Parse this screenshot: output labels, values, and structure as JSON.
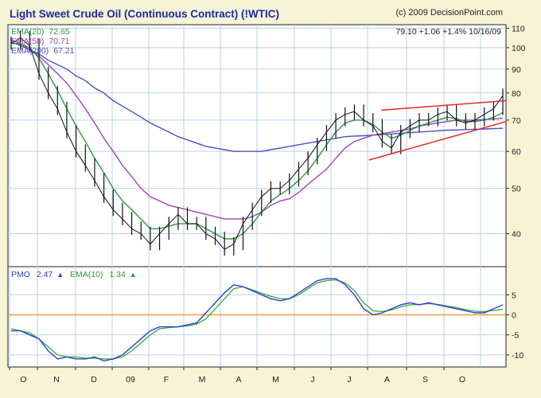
{
  "header": {
    "title": "Light Sweet Crude Oil (Continuous Contract) (!WTIC)",
    "copyright": "(c) 2009 DecisionPoint.com",
    "quote": "79.10  +1.06  +1.4%  10/16/09"
  },
  "legend_top": [
    {
      "label": "EMA(20)",
      "value": "72.65",
      "color": "#2e9a3e"
    },
    {
      "label": "EMA(50)",
      "value": "70.71",
      "color": "#9b46b5"
    },
    {
      "label": "EMA(200)",
      "value": "67.21",
      "color": "#4a4fbf"
    }
  ],
  "legend_bottom": {
    "pmo_label": "PMO",
    "pmo_value": "2.47",
    "pmo_arrow": "▲",
    "pmo_color": "#3040cc",
    "ema_label": "EMA(10)",
    "ema_value": "1.34",
    "ema_arrow": "▲",
    "ema_color": "#2e9a3e"
  },
  "colors": {
    "background": "#f6f3d6",
    "plot_bg": "#ffffff",
    "grid": "#b9d2e6",
    "price": "#111111",
    "channel": "#e8262b",
    "zero_line": "#f29a3a",
    "pmo": "#3040cc",
    "pmo_ema": "#42b04a"
  },
  "chart_data": [
    {
      "type": "line",
      "panel": "price",
      "title": "Light Sweet Crude Oil (Continuous Contract) (!WTIC)",
      "x_month_labels": [
        "O",
        "N",
        "D",
        "09",
        "F",
        "M",
        "A",
        "M",
        "J",
        "J",
        "A",
        "S",
        "O"
      ],
      "ylim": [
        34,
        112
      ],
      "y_ticks": [
        40,
        50,
        60,
        70,
        80,
        90,
        100,
        110
      ],
      "y_scale": "log",
      "grid": true,
      "series": [
        {
          "name": "Price",
          "values": [
            102,
            105,
            101,
            88,
            80,
            74,
            66,
            60,
            56,
            52,
            48,
            45,
            43,
            41,
            40,
            38,
            40,
            42,
            44,
            42,
            42,
            40,
            39,
            37,
            38,
            42,
            45,
            48,
            50,
            50,
            52,
            55,
            58,
            62,
            66,
            70,
            72,
            73,
            70,
            68,
            63,
            61,
            66,
            68,
            70,
            70,
            72,
            73,
            70,
            69,
            70,
            72,
            74,
            79
          ]
        },
        {
          "name": "EMA(20)",
          "values": [
            102,
            102,
            100,
            95,
            88,
            81,
            74,
            68,
            63,
            58,
            54,
            50,
            47,
            45,
            43,
            41,
            41,
            41.5,
            42,
            42,
            42,
            41,
            40,
            39,
            39,
            40,
            42,
            44.5,
            47,
            48.5,
            50,
            52,
            54.5,
            58,
            62,
            66,
            69,
            70,
            70,
            68.5,
            66,
            64,
            65,
            66.5,
            68,
            69,
            70,
            71,
            70.5,
            69.5,
            69.5,
            70,
            71,
            72.65
          ]
        },
        {
          "name": "EMA(50)",
          "values": [
            104,
            102,
            99,
            96,
            92,
            88,
            84,
            79,
            74,
            69,
            64,
            60,
            56,
            53,
            50,
            48,
            47,
            46,
            45.5,
            45,
            44.5,
            44,
            43.5,
            43,
            43,
            43,
            43.5,
            44.5,
            46,
            47,
            47.5,
            49,
            51,
            53,
            55,
            58,
            61,
            63,
            64,
            65,
            65.5,
            66,
            66.5,
            67,
            68,
            68.5,
            69,
            69.5,
            70,
            70,
            70,
            70.2,
            70.4,
            70.71
          ]
        },
        {
          "name": "EMA(200)",
          "values": [
            103,
            101,
            99,
            97,
            94,
            92,
            90,
            87,
            85,
            82,
            80,
            77,
            75,
            73,
            71,
            69,
            67.5,
            66,
            64.5,
            63.5,
            62.5,
            61.5,
            61,
            60.5,
            60,
            60,
            60,
            60,
            60.5,
            61,
            61.5,
            62,
            62.5,
            63,
            63.5,
            64,
            64.5,
            64.7,
            64.8,
            65,
            65.2,
            65.4,
            65.6,
            65.8,
            66,
            66.2,
            66.4,
            66.6,
            66.7,
            66.8,
            66.9,
            67,
            67.1,
            67.21
          ]
        }
      ],
      "trendlines": [
        {
          "from": [
            0.75,
            73.5
          ],
          "to": [
            1.0,
            77
          ]
        },
        {
          "from": [
            0.725,
            57.5
          ],
          "to": [
            1.0,
            69.5
          ]
        }
      ]
    },
    {
      "type": "line",
      "panel": "pmo",
      "x_month_labels": [
        "O",
        "N",
        "D",
        "09",
        "F",
        "M",
        "A",
        "M",
        "J",
        "J",
        "A",
        "S",
        "O"
      ],
      "ylim": [
        -13,
        12
      ],
      "y_ticks": [
        -10,
        -5,
        0,
        5
      ],
      "grid": true,
      "reference_line": 0,
      "series": [
        {
          "name": "PMO",
          "values": [
            -4,
            -4,
            -5,
            -6,
            -9,
            -11,
            -10.5,
            -11,
            -11,
            -10.5,
            -11.5,
            -11,
            -10,
            -8,
            -6,
            -4,
            -3,
            -3,
            -3,
            -2.5,
            -2,
            0.5,
            3,
            5.5,
            7.5,
            7,
            6,
            5,
            4,
            3.5,
            4,
            5.5,
            7,
            8.5,
            9,
            9,
            7.5,
            5,
            1.5,
            0,
            0.5,
            1.5,
            2.5,
            3,
            2.5,
            3,
            2.5,
            2,
            1.5,
            1,
            0.5,
            0.5,
            1.5,
            2.47
          ]
        },
        {
          "name": "EMA(10)",
          "values": [
            -3.5,
            -4,
            -4.5,
            -6,
            -8,
            -10,
            -10.5,
            -10.5,
            -10.8,
            -10.8,
            -11,
            -11,
            -10.5,
            -9,
            -7,
            -5,
            -3.5,
            -3.2,
            -3,
            -2.8,
            -2.3,
            -1,
            1.5,
            4,
            6.5,
            7,
            6.2,
            5.4,
            4.6,
            4,
            4,
            5,
            6.5,
            8,
            8.5,
            8.7,
            8,
            6,
            3,
            1,
            0.8,
            1.2,
            2,
            2.5,
            2.6,
            2.8,
            2.6,
            2.2,
            1.8,
            1.3,
            0.9,
            0.8,
            1.1,
            1.34
          ]
        }
      ]
    }
  ]
}
